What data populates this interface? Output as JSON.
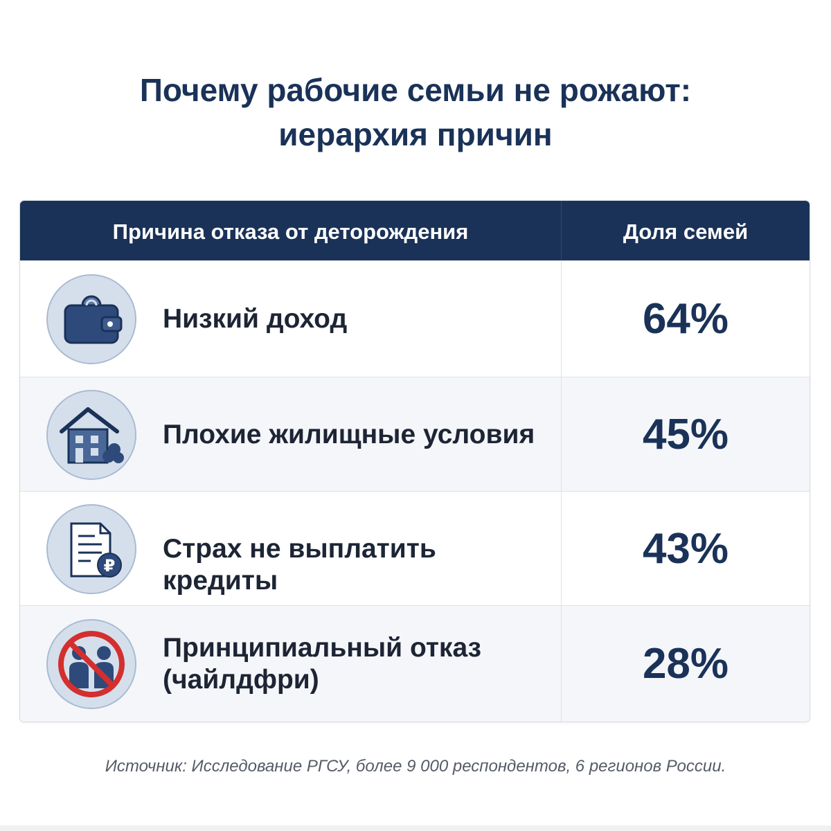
{
  "title": {
    "line1": "Почему рабочие семьи не рожают:",
    "line2": "иерархия причин"
  },
  "colors": {
    "header_bg": "#1a3258",
    "accent": "#1a3258",
    "icon_circle": "#d5dfec",
    "prohibit_red": "#d32f2f"
  },
  "chart_data": {
    "type": "table",
    "columns": [
      "Причина отказа от деторождения",
      "Доля семей"
    ],
    "rows": [
      {
        "icon": "wallet-icon",
        "reason_lines": [
          "Низкий доход"
        ],
        "value": 64,
        "label": "64%"
      },
      {
        "icon": "house-icon",
        "reason_lines": [
          "Плохие жилищные условия"
        ],
        "value": 45,
        "label": "45%"
      },
      {
        "icon": "document-ruble-icon",
        "reason_lines": [
          "Страх не выплатить кредиты"
        ],
        "value": 43,
        "label": "43%"
      },
      {
        "icon": "no-children-icon",
        "reason_lines": [
          "Принципиальный отказ",
          "(чайлдфри)"
        ],
        "value": 28,
        "label": "28%"
      }
    ],
    "unit": "%"
  },
  "source": "Источник: Исследование РГСУ, более 9 000 респондентов, 6 регионов России."
}
